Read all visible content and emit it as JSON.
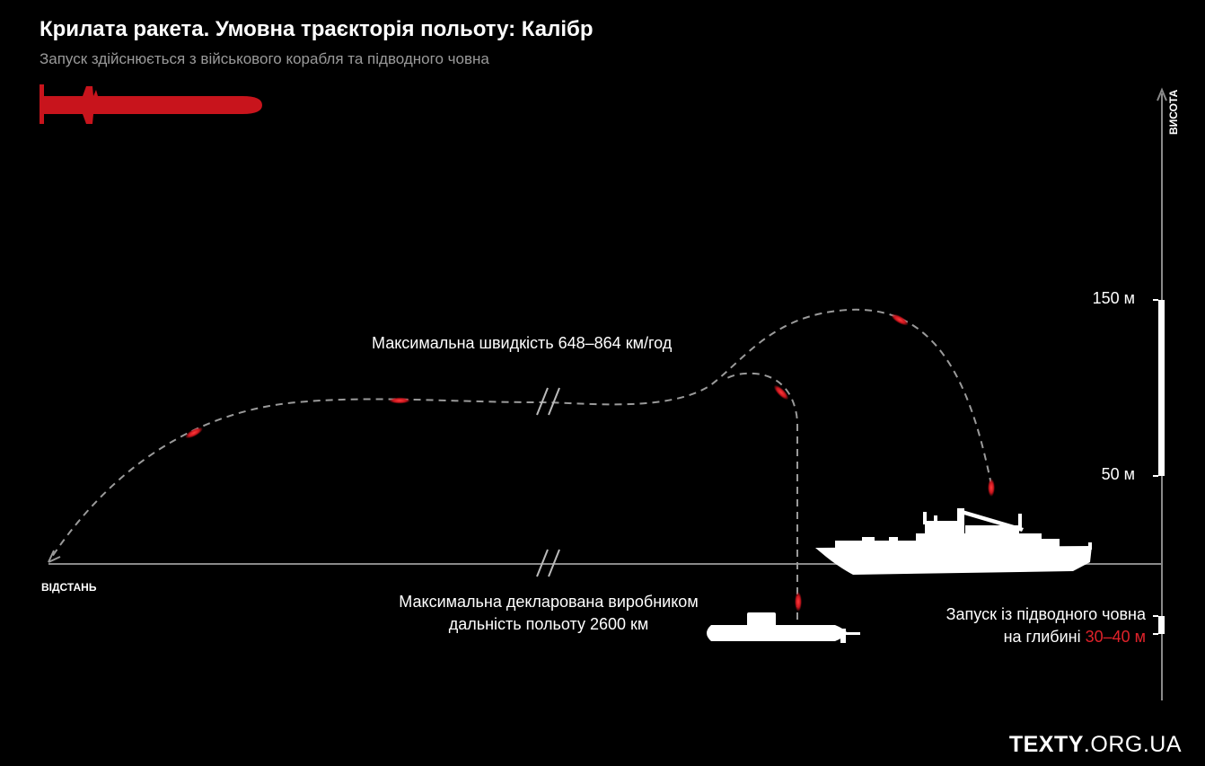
{
  "header": {
    "title": "Крилата ракета. Умовна траєкторія польоту: Калібр",
    "subtitle": "Запуск здійснюється з військового корабля та підводного човна"
  },
  "labels": {
    "speed": "Максимальна швидкість 648–864 км/год",
    "range_line1": "Максимальна декларована виробником",
    "range_line2": "дальність польоту 2600 км",
    "depth_line1": "Запуск із підводного човна",
    "depth_line2_prefix": "на глибині ",
    "depth_value": "30–40 м",
    "alt_150": "150 м",
    "alt_50": "50 м",
    "x_axis": "ВІДСТАНЬ",
    "y_axis": "ВИСОТА"
  },
  "brand": {
    "bold": "TEXTY",
    "rest": ".ORG.UA"
  },
  "colors": {
    "background": "#000000",
    "accent_red": "#e0222a",
    "trajectory": "#9a9a9a",
    "axis": "#8a8a8a"
  },
  "icons": {
    "missile": "missile-icon",
    "ship": "warship-icon",
    "submarine": "submarine-icon"
  }
}
